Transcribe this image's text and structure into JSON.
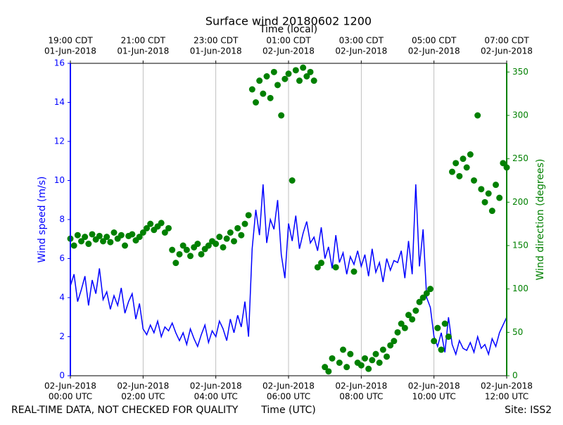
{
  "chart_data": {
    "type": "line",
    "title": "Surface wind 20180602 1200",
    "top_axis_label": "Time (local)",
    "x_axis_label": "Time (UTC)",
    "y_axis_label": "Wind speed (m/s)",
    "y2_axis_label": "Wind direction (degrees)",
    "footer_left": "REAL-TIME DATA, NOT CHECKED FOR QUALITY",
    "footer_right": "Site: ISS2",
    "grid": true,
    "xlim": [
      "2018-06-02T00:00Z",
      "2018-06-02T12:00Z"
    ],
    "xticks": [
      {
        "value": "2018-06-02T00:00Z",
        "label": [
          "02-Jun-2018",
          "00:00 UTC"
        ]
      },
      {
        "value": "2018-06-02T02:00Z",
        "label": [
          "02-Jun-2018",
          "02:00 UTC"
        ]
      },
      {
        "value": "2018-06-02T04:00Z",
        "label": [
          "02-Jun-2018",
          "04:00 UTC"
        ]
      },
      {
        "value": "2018-06-02T06:00Z",
        "label": [
          "02-Jun-2018",
          "06:00 UTC"
        ]
      },
      {
        "value": "2018-06-02T08:00Z",
        "label": [
          "02-Jun-2018",
          "08:00 UTC"
        ]
      },
      {
        "value": "2018-06-02T10:00Z",
        "label": [
          "02-Jun-2018",
          "10:00 UTC"
        ]
      },
      {
        "value": "2018-06-02T12:00Z",
        "label": [
          "02-Jun-2018",
          "12:00 UTC"
        ]
      }
    ],
    "x2ticks": [
      {
        "value": "2018-06-02T00:00Z",
        "label": [
          "19:00 CDT",
          "01-Jun-2018"
        ]
      },
      {
        "value": "2018-06-02T02:00Z",
        "label": [
          "21:00 CDT",
          "01-Jun-2018"
        ]
      },
      {
        "value": "2018-06-02T04:00Z",
        "label": [
          "23:00 CDT",
          "01-Jun-2018"
        ]
      },
      {
        "value": "2018-06-02T06:00Z",
        "label": [
          "01:00 CDT",
          "02-Jun-2018"
        ]
      },
      {
        "value": "2018-06-02T08:00Z",
        "label": [
          "03:00 CDT",
          "02-Jun-2018"
        ]
      },
      {
        "value": "2018-06-02T10:00Z",
        "label": [
          "05:00 CDT",
          "02-Jun-2018"
        ]
      },
      {
        "value": "2018-06-02T12:00Z",
        "label": [
          "07:00 CDT",
          "02-Jun-2018"
        ]
      }
    ],
    "ylim": [
      0,
      16
    ],
    "yticks": [
      0,
      2,
      4,
      6,
      8,
      10,
      12,
      14,
      16
    ],
    "y2lim": [
      0,
      360
    ],
    "y2ticks": [
      0,
      50,
      100,
      150,
      200,
      250,
      300,
      350
    ],
    "y_color": "#0000ff",
    "y2_color": "#008000",
    "x": [
      "2018-06-02T00:00Z",
      "2018-06-02T00:06Z",
      "2018-06-02T00:12Z",
      "2018-06-02T00:18Z",
      "2018-06-02T00:24Z",
      "2018-06-02T00:30Z",
      "2018-06-02T00:36Z",
      "2018-06-02T00:42Z",
      "2018-06-02T00:48Z",
      "2018-06-02T00:54Z",
      "2018-06-02T01:00Z",
      "2018-06-02T01:06Z",
      "2018-06-02T01:12Z",
      "2018-06-02T01:18Z",
      "2018-06-02T01:24Z",
      "2018-06-02T01:30Z",
      "2018-06-02T01:36Z",
      "2018-06-02T01:42Z",
      "2018-06-02T01:48Z",
      "2018-06-02T01:54Z",
      "2018-06-02T02:00Z",
      "2018-06-02T02:06Z",
      "2018-06-02T02:12Z",
      "2018-06-02T02:18Z",
      "2018-06-02T02:24Z",
      "2018-06-02T02:30Z",
      "2018-06-02T02:36Z",
      "2018-06-02T02:42Z",
      "2018-06-02T02:48Z",
      "2018-06-02T02:54Z",
      "2018-06-02T03:00Z",
      "2018-06-02T03:06Z",
      "2018-06-02T03:12Z",
      "2018-06-02T03:18Z",
      "2018-06-02T03:24Z",
      "2018-06-02T03:30Z",
      "2018-06-02T03:36Z",
      "2018-06-02T03:42Z",
      "2018-06-02T03:48Z",
      "2018-06-02T03:54Z",
      "2018-06-02T04:00Z",
      "2018-06-02T04:06Z",
      "2018-06-02T04:12Z",
      "2018-06-02T04:18Z",
      "2018-06-02T04:24Z",
      "2018-06-02T04:30Z",
      "2018-06-02T04:36Z",
      "2018-06-02T04:42Z",
      "2018-06-02T04:48Z",
      "2018-06-02T04:54Z",
      "2018-06-02T05:00Z",
      "2018-06-02T05:06Z",
      "2018-06-02T05:12Z",
      "2018-06-02T05:18Z",
      "2018-06-02T05:24Z",
      "2018-06-02T05:30Z",
      "2018-06-02T05:36Z",
      "2018-06-02T05:42Z",
      "2018-06-02T05:48Z",
      "2018-06-02T05:54Z",
      "2018-06-02T06:00Z",
      "2018-06-02T06:06Z",
      "2018-06-02T06:12Z",
      "2018-06-02T06:18Z",
      "2018-06-02T06:24Z",
      "2018-06-02T06:30Z",
      "2018-06-02T06:36Z",
      "2018-06-02T06:42Z",
      "2018-06-02T06:48Z",
      "2018-06-02T06:54Z",
      "2018-06-02T07:00Z",
      "2018-06-02T07:06Z",
      "2018-06-02T07:12Z",
      "2018-06-02T07:18Z",
      "2018-06-02T07:24Z",
      "2018-06-02T07:30Z",
      "2018-06-02T07:36Z",
      "2018-06-02T07:42Z",
      "2018-06-02T07:48Z",
      "2018-06-02T07:54Z",
      "2018-06-02T08:00Z",
      "2018-06-02T08:06Z",
      "2018-06-02T08:12Z",
      "2018-06-02T08:18Z",
      "2018-06-02T08:24Z",
      "2018-06-02T08:30Z",
      "2018-06-02T08:36Z",
      "2018-06-02T08:42Z",
      "2018-06-02T08:48Z",
      "2018-06-02T08:54Z",
      "2018-06-02T09:00Z",
      "2018-06-02T09:06Z",
      "2018-06-02T09:12Z",
      "2018-06-02T09:18Z",
      "2018-06-02T09:24Z",
      "2018-06-02T09:30Z",
      "2018-06-02T09:36Z",
      "2018-06-02T09:42Z",
      "2018-06-02T09:48Z",
      "2018-06-02T09:54Z",
      "2018-06-02T10:00Z",
      "2018-06-02T10:06Z",
      "2018-06-02T10:12Z",
      "2018-06-02T10:18Z",
      "2018-06-02T10:24Z",
      "2018-06-02T10:30Z",
      "2018-06-02T10:36Z",
      "2018-06-02T10:42Z",
      "2018-06-02T10:48Z",
      "2018-06-02T10:54Z",
      "2018-06-02T11:00Z",
      "2018-06-02T11:06Z",
      "2018-06-02T11:12Z",
      "2018-06-02T11:18Z",
      "2018-06-02T11:24Z",
      "2018-06-02T11:30Z",
      "2018-06-02T11:36Z",
      "2018-06-02T11:42Z",
      "2018-06-02T11:48Z",
      "2018-06-02T11:54Z",
      "2018-06-02T12:00Z"
    ],
    "series": [
      {
        "type": "line",
        "axis": "y",
        "color": "#0000ff",
        "values": [
          4.6,
          5.2,
          3.8,
          4.4,
          5.1,
          3.6,
          4.9,
          4.2,
          5.5,
          3.9,
          4.3,
          3.4,
          4.1,
          3.6,
          4.5,
          3.2,
          3.8,
          4.2,
          2.9,
          3.7,
          2.4,
          2.1,
          2.6,
          2.2,
          2.8,
          2.0,
          2.5,
          2.3,
          2.7,
          2.2,
          1.8,
          2.2,
          1.6,
          2.4,
          1.9,
          1.5,
          2.1,
          2.6,
          1.7,
          2.3,
          2.0,
          2.8,
          2.4,
          1.8,
          2.9,
          2.2,
          3.1,
          2.5,
          3.8,
          2.0,
          6.5,
          8.5,
          7.2,
          9.8,
          6.8,
          8.0,
          7.5,
          9.0,
          6.2,
          5.0,
          7.8,
          6.9,
          8.2,
          6.5,
          7.3,
          7.9,
          6.8,
          7.1,
          6.4,
          7.6,
          6.0,
          6.6,
          5.5,
          7.2,
          5.8,
          6.3,
          5.2,
          6.1,
          5.7,
          6.4,
          5.6,
          6.2,
          5.1,
          6.5,
          5.3,
          5.8,
          4.8,
          6.0,
          5.4,
          5.9,
          5.8,
          6.4,
          5.0,
          6.9,
          5.2,
          9.8,
          5.6,
          7.5,
          4.0,
          3.5,
          2.0,
          1.5,
          2.2,
          1.2,
          3.0,
          1.6,
          1.1,
          1.8,
          1.4,
          1.3,
          1.7,
          1.2,
          2.0,
          1.4,
          1.6,
          1.1,
          1.9,
          1.5,
          2.2,
          2.6,
          3.0
        ]
      },
      {
        "type": "scatter",
        "axis": "y2",
        "color": "#008000",
        "values": [
          158,
          150,
          162,
          155,
          160,
          152,
          163,
          157,
          161,
          155,
          160,
          154,
          165,
          158,
          162,
          150,
          161,
          163,
          156,
          160,
          165,
          170,
          175,
          168,
          172,
          176,
          165,
          170,
          145,
          130,
          140,
          150,
          145,
          138,
          148,
          152,
          140,
          146,
          150,
          155,
          152,
          160,
          148,
          158,
          165,
          155,
          170,
          162,
          175,
          185,
          330,
          315,
          340,
          325,
          345,
          320,
          350,
          335,
          300,
          342,
          348,
          225,
          352,
          340,
          355,
          345,
          350,
          340,
          125,
          130,
          10,
          5,
          20,
          125,
          15,
          30,
          10,
          25,
          120,
          15,
          12,
          20,
          8,
          18,
          25,
          15,
          30,
          22,
          35,
          40,
          50,
          60,
          55,
          70,
          65,
          75,
          85,
          90,
          95,
          100,
          40,
          55,
          30,
          60,
          45,
          235,
          245,
          230,
          250,
          240,
          255,
          225,
          300,
          215,
          200,
          210,
          190,
          220,
          205,
          245,
          240
        ]
      }
    ]
  }
}
